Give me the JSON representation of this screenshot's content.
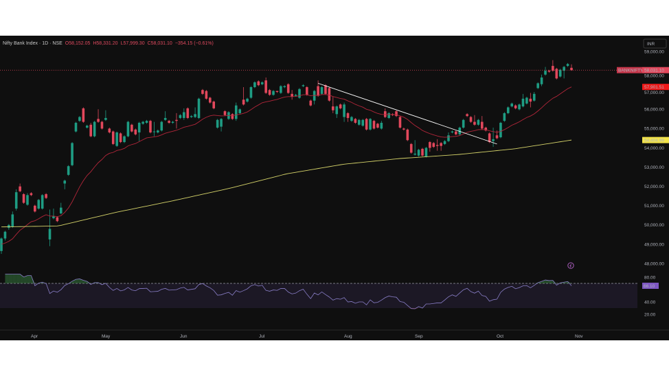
{
  "header": {
    "symbol_title": "Nifty Bank Index · 1D · NSE",
    "open": "O58,152.05",
    "high": "H58,331.20",
    "low": "L57,999.30",
    "close": "C58,031.10",
    "change": "−354.15 (−0.61%)"
  },
  "currency_button": "INR",
  "price_axis": {
    "ticks": [
      "59,000.00",
      "58,000.00",
      "57,000.00",
      "56,000.00",
      "55,000.00",
      "54,000.00",
      "53,000.00",
      "52,000.00",
      "51,000.00",
      "50,000.00",
      "49,000.00",
      "48,000.00"
    ],
    "symbol_tag": "BANKNIFTY",
    "last_price_label": "58,031.10",
    "ema_label": "57,901.51",
    "sma_label": "54,404.99"
  },
  "rsi_axis": {
    "ticks": [
      "80.00",
      "40.00",
      "20.00"
    ],
    "current_label": "66.10"
  },
  "time_axis": [
    "Apr",
    "May",
    "Jun",
    "Jul",
    "Aug",
    "Sep",
    "Oct",
    "Nov"
  ],
  "colors": {
    "up": "#1e9c83",
    "down": "#e2485c",
    "ema": "#b3263a",
    "sma": "#d6d46a",
    "rsi": "#8a7fc9",
    "trendline": "#ffffff",
    "background": "#0f0f0f"
  },
  "icons": {
    "event_marker": "lightning-circle-icon"
  },
  "chart_data": {
    "type": "candlestick",
    "price_range": [
      48000,
      59000
    ],
    "rsi_range": [
      20,
      80
    ],
    "rsi_bands": [
      30,
      70
    ],
    "last_price": 58031.1,
    "rsi_value": 66.1,
    "ohlc": [
      [
        48650,
        49350,
        48500,
        49300
      ],
      [
        49300,
        49700,
        49200,
        49650
      ],
      [
        49850,
        50050,
        49750,
        50000
      ],
      [
        49900,
        50700,
        49850,
        50550
      ],
      [
        50850,
        51850,
        50750,
        51700
      ],
      [
        52000,
        52150,
        51700,
        51750
      ],
      [
        51600,
        51650,
        51100,
        51150
      ],
      [
        51050,
        51650,
        51000,
        51550
      ],
      [
        51650,
        51700,
        51500,
        51550
      ],
      [
        51000,
        51050,
        50650,
        50700
      ],
      [
        50850,
        51350,
        50800,
        51300
      ],
      [
        50850,
        51600,
        50800,
        51550
      ],
      [
        51600,
        51650,
        51350,
        51400
      ],
      [
        49250,
        50800,
        48900,
        49800
      ],
      [
        50350,
        50850,
        50300,
        50450
      ],
      [
        50400,
        50450,
        50150,
        50200
      ],
      [
        50600,
        51150,
        50550,
        50900
      ],
      [
        52150,
        52350,
        51850,
        52300
      ],
      [
        52600,
        53100,
        52550,
        53050
      ],
      [
        53100,
        54300,
        53050,
        54250
      ],
      [
        54850,
        55350,
        54800,
        55300
      ],
      [
        55400,
        55650,
        55350,
        55600
      ],
      [
        56050,
        56100,
        55300,
        55350
      ],
      [
        55050,
        55200,
        55000,
        55150
      ],
      [
        55200,
        55300,
        54550,
        54600
      ],
      [
        54600,
        55400,
        54550,
        55350
      ],
      [
        55500,
        56000,
        55300,
        55350
      ],
      [
        55350,
        55400,
        54950,
        55000
      ],
      [
        55450,
        55950,
        55400,
        55550
      ],
      [
        55000,
        55050,
        54750,
        54800
      ],
      [
        54850,
        54900,
        54150,
        54200
      ],
      [
        54100,
        54850,
        54050,
        54800
      ],
      [
        54750,
        54800,
        54250,
        54300
      ],
      [
        54300,
        54650,
        54250,
        54600
      ],
      [
        54600,
        55400,
        54550,
        55350
      ],
      [
        55200,
        55250,
        54800,
        54850
      ],
      [
        54950,
        55000,
        54650,
        54700
      ],
      [
        54800,
        55350,
        54350,
        55300
      ],
      [
        55250,
        55400,
        55200,
        55350
      ],
      [
        55300,
        55450,
        55250,
        55400
      ],
      [
        55400,
        55450,
        54750,
        54800
      ],
      [
        54850,
        55350,
        54600,
        54850
      ],
      [
        54800,
        54950,
        54750,
        54900
      ],
      [
        54900,
        55400,
        54850,
        55350
      ],
      [
        55450,
        55900,
        55400,
        55550
      ],
      [
        55400,
        55450,
        55250,
        55300
      ],
      [
        55300,
        55400,
        55250,
        55350
      ],
      [
        55450,
        55800,
        55000,
        55400
      ],
      [
        55550,
        55750,
        55500,
        55700
      ],
      [
        55550,
        56050,
        55450,
        55850
      ],
      [
        56050,
        56100,
        55500,
        55550
      ],
      [
        55600,
        55700,
        55550,
        55650
      ],
      [
        55600,
        56100,
        55550,
        55750
      ],
      [
        55550,
        56600,
        55500,
        56550
      ],
      [
        57000,
        57050,
        56750,
        56800
      ],
      [
        56950,
        57000,
        56500,
        56550
      ],
      [
        56600,
        56650,
        56300,
        56350
      ],
      [
        56400,
        56450,
        56000,
        56050
      ],
      [
        55050,
        55500,
        55000,
        55450
      ],
      [
        55100,
        55550,
        54850,
        55500
      ],
      [
        55900,
        55950,
        55650,
        55700
      ],
      [
        55500,
        55900,
        55450,
        55850
      ],
      [
        55750,
        55800,
        55450,
        55500
      ],
      [
        55500,
        56350,
        55400,
        56200
      ],
      [
        55800,
        56050,
        55750,
        56000
      ],
      [
        56500,
        57150,
        56200,
        56250
      ],
      [
        56400,
        56600,
        56350,
        56550
      ],
      [
        56600,
        57200,
        56550,
        57150
      ],
      [
        57150,
        57450,
        57100,
        57400
      ],
      [
        57450,
        57500,
        57200,
        57250
      ],
      [
        57300,
        57450,
        57250,
        57400
      ],
      [
        57500,
        57650,
        56800,
        56850
      ],
      [
        57000,
        57050,
        56700,
        56750
      ],
      [
        56750,
        57000,
        56700,
        56950
      ],
      [
        56950,
        56950,
        56850,
        56900
      ],
      [
        56850,
        57250,
        56800,
        57200
      ],
      [
        57150,
        57250,
        57100,
        57200
      ],
      [
        57300,
        57350,
        56800,
        56850
      ],
      [
        56800,
        57000,
        56500,
        56650
      ],
      [
        56700,
        56800,
        56650,
        56750
      ],
      [
        56600,
        57100,
        56550,
        57050
      ],
      [
        57200,
        57300,
        57150,
        57250
      ],
      [
        57150,
        57200,
        56700,
        56750
      ],
      [
        56450,
        56500,
        56150,
        56200
      ],
      [
        56450,
        57000,
        56250,
        56950
      ],
      [
        57200,
        57500,
        56650,
        56700
      ],
      [
        56800,
        57200,
        56750,
        57150
      ],
      [
        57250,
        57300,
        56750,
        56800
      ],
      [
        57100,
        57150,
        56400,
        56450
      ],
      [
        56150,
        56650,
        55800,
        55950
      ],
      [
        55750,
        56200,
        55550,
        56150
      ],
      [
        56250,
        56300,
        56000,
        56050
      ],
      [
        55600,
        56350,
        55350,
        56250
      ],
      [
        55800,
        55850,
        55350,
        55550
      ],
      [
        55400,
        55650,
        55350,
        55600
      ],
      [
        55500,
        55550,
        55250,
        55300
      ],
      [
        55200,
        55500,
        55150,
        55450
      ],
      [
        55150,
        55500,
        55100,
        55450
      ],
      [
        55500,
        55550,
        54900,
        54950
      ],
      [
        54950,
        55550,
        54900,
        55500
      ],
      [
        55400,
        55450,
        54950,
        55000
      ],
      [
        55250,
        55300,
        55000,
        55050
      ],
      [
        55000,
        55400,
        54950,
        55300
      ],
      [
        55900,
        56050,
        55550,
        55600
      ],
      [
        55550,
        55850,
        55500,
        55800
      ],
      [
        55750,
        55800,
        55650,
        55700
      ],
      [
        55900,
        55950,
        55600,
        55650
      ],
      [
        55600,
        55650,
        55000,
        55050
      ],
      [
        55000,
        55050,
        54900,
        54950
      ],
      [
        54950,
        55000,
        54350,
        54400
      ],
      [
        54200,
        54250,
        53700,
        53750
      ],
      [
        53650,
        54400,
        53600,
        53700
      ],
      [
        53600,
        53950,
        53550,
        53900
      ],
      [
        53950,
        54000,
        53550,
        53600
      ],
      [
        53550,
        54050,
        53500,
        54000
      ],
      [
        54300,
        54350,
        53800,
        54000
      ],
      [
        54250,
        54300,
        54000,
        54050
      ],
      [
        54150,
        54450,
        53850,
        54100
      ],
      [
        54250,
        54300,
        53850,
        54100
      ],
      [
        54200,
        54400,
        54150,
        54350
      ],
      [
        54350,
        54800,
        54300,
        54650
      ],
      [
        54800,
        54900,
        54750,
        54850
      ],
      [
        54850,
        54900,
        54650,
        54700
      ],
      [
        54700,
        55100,
        54650,
        55050
      ],
      [
        55050,
        55500,
        55000,
        55450
      ],
      [
        55750,
        55800,
        55600,
        55650
      ],
      [
        55600,
        55650,
        55300,
        55350
      ],
      [
        55350,
        55700,
        55150,
        55200
      ],
      [
        55200,
        55500,
        55150,
        55450
      ],
      [
        55350,
        55650,
        54950,
        55000
      ],
      [
        55050,
        55100,
        54850,
        54900
      ],
      [
        54750,
        54800,
        54250,
        54300
      ],
      [
        54350,
        55050,
        54050,
        54450
      ],
      [
        54650,
        54900,
        54450,
        54500
      ],
      [
        54550,
        55350,
        54500,
        55300
      ],
      [
        55400,
        55850,
        55350,
        55800
      ],
      [
        55800,
        56150,
        55750,
        56100
      ],
      [
        56150,
        56350,
        56100,
        56300
      ],
      [
        56200,
        56250,
        56000,
        56050
      ],
      [
        56000,
        56300,
        55950,
        56250
      ],
      [
        56150,
        56800,
        56100,
        56550
      ],
      [
        56300,
        56650,
        56250,
        56600
      ],
      [
        56550,
        56850,
        56100,
        56400
      ],
      [
        56450,
        56900,
        56400,
        56800
      ],
      [
        57100,
        57400,
        57050,
        57350
      ],
      [
        57300,
        57800,
        57200,
        57650
      ],
      [
        57800,
        58200,
        57750,
        58000
      ],
      [
        58000,
        58050,
        57900,
        57950
      ],
      [
        58250,
        58550,
        57950,
        58000
      ],
      [
        58100,
        58150,
        57550,
        57600
      ],
      [
        57700,
        58100,
        57650,
        58050
      ],
      [
        58000,
        58250,
        57600,
        58200
      ],
      [
        58250,
        58400,
        58200,
        58350
      ],
      [
        58152.05,
        58331.2,
        57999.3,
        58031.1
      ]
    ],
    "ema_period": 20,
    "sma_long_samples": [
      49900,
      49950,
      50650,
      51250,
      51900,
      52650,
      53150,
      53450,
      53650,
      53950,
      54404.99
    ],
    "trendline": {
      "start_index": 85,
      "start_price": 57350,
      "end_index": 133,
      "end_price": 54200
    },
    "rsi_period": 14
  }
}
